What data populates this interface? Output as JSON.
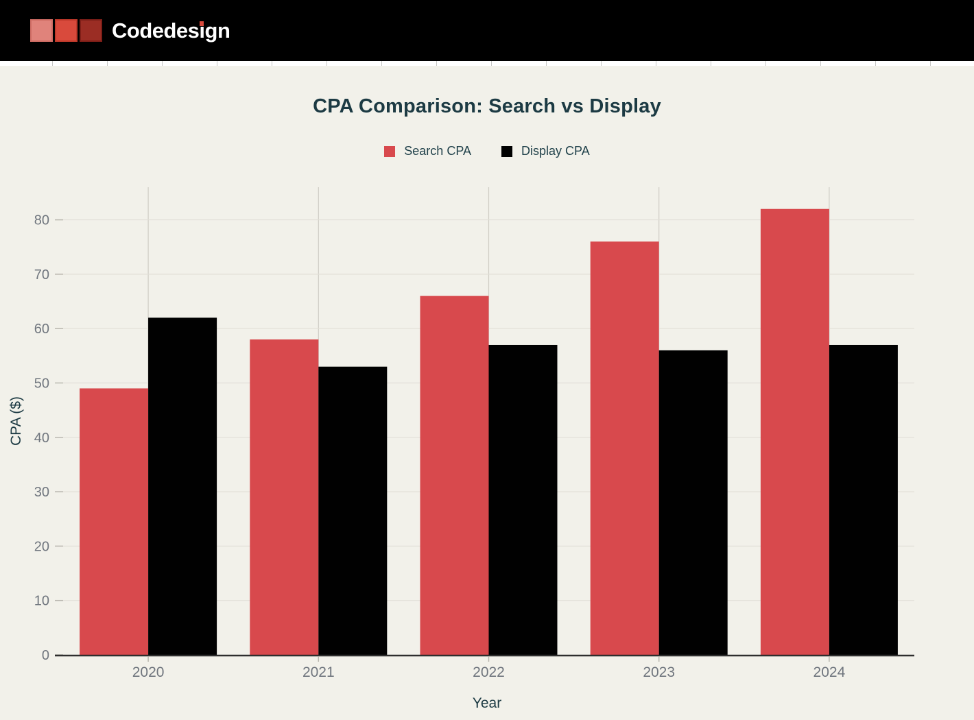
{
  "header": {
    "logo": {
      "text": "Codedesign",
      "text_pre": "Codedes",
      "text_i": "i",
      "text_post": "gn",
      "square_colors": [
        "#e0837b",
        "#d94a3c",
        "#9b2d24"
      ]
    }
  },
  "chart_data": {
    "type": "bar",
    "title": "CPA Comparison: Search vs Display",
    "categories": [
      "2020",
      "2021",
      "2022",
      "2023",
      "2024"
    ],
    "series": [
      {
        "name": "Search CPA",
        "color": "#d8494d",
        "values": [
          49,
          58,
          66,
          76,
          82
        ]
      },
      {
        "name": "Display CPA",
        "color": "#010101",
        "values": [
          62,
          53,
          57,
          56,
          57
        ]
      }
    ],
    "xlabel": "Year",
    "ylabel": "CPA ($)",
    "ylim": [
      0,
      86
    ],
    "yticks": [
      0,
      10,
      20,
      30,
      40,
      50,
      60,
      70,
      80
    ],
    "grid": true,
    "legend_position": "top"
  },
  "colors": {
    "page_background": "#f2f1ea",
    "header_background": "#000000",
    "brand_red": "#d94a3c",
    "title_text": "#1c3a43",
    "tick_label": "#70767e",
    "gridline": "#e1dfd7",
    "axis_line": "#2e2e2e",
    "bar_search": "#d8494d",
    "bar_display": "#010101"
  }
}
